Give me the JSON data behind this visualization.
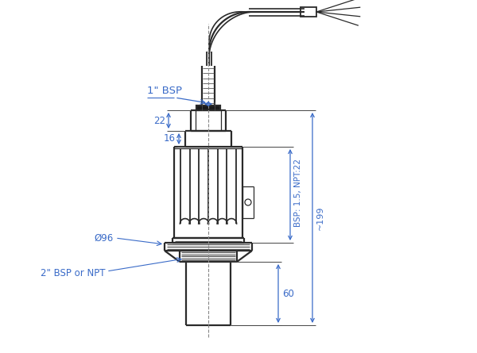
{
  "bg_color": "#ffffff",
  "line_color": "#2a2a2a",
  "dim_color": "#3a6bc8",
  "lw_main": 1.6,
  "lw_thin": 0.9,
  "lw_dash": 0.8,
  "annotations": {
    "bsp_top": "1\" BSP",
    "dim_22": "22",
    "dim_16": "16",
    "dim_096": "Ø96",
    "bsp_bottom": "2\" BSP or NPT",
    "dim_right": "BSP: 1.5, NPT:22",
    "dim_199": "~199",
    "dim_60": "60"
  }
}
